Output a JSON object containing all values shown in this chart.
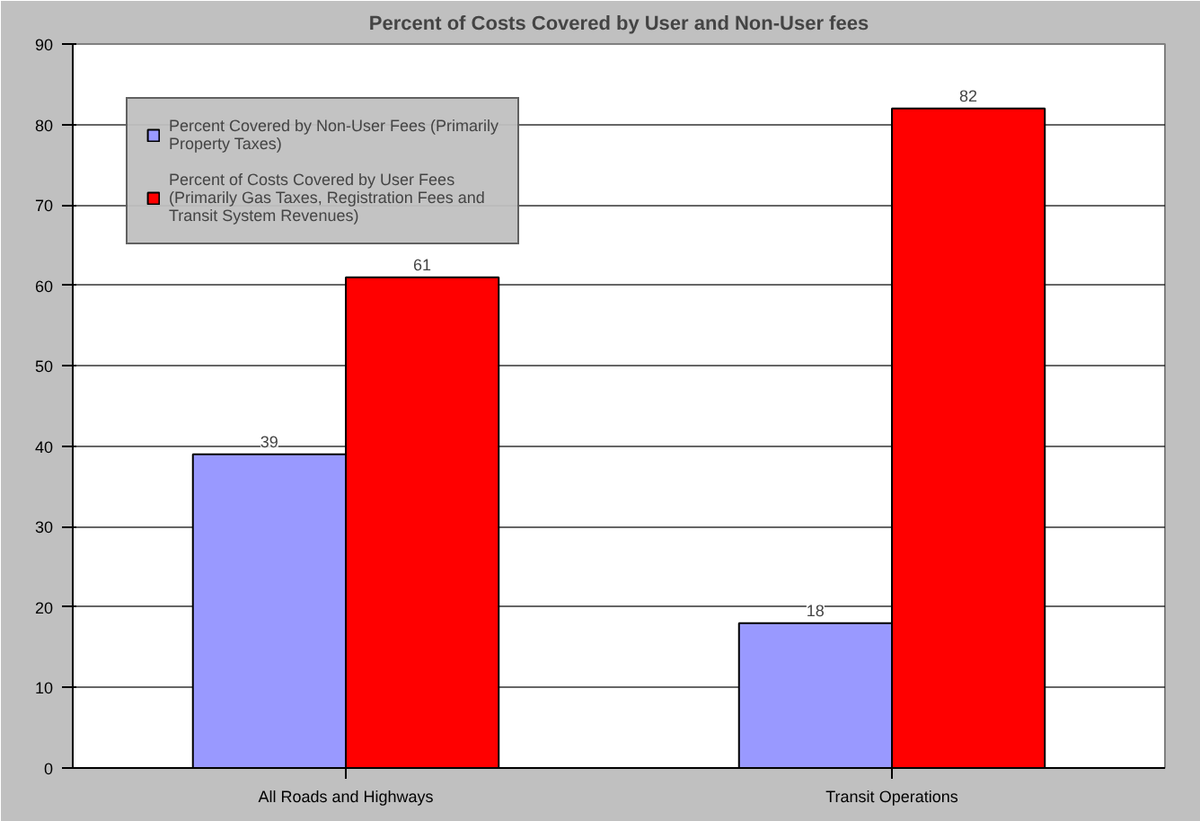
{
  "chart_data": {
    "type": "bar",
    "title": "Percent of Costs Covered by User and Non-User fees",
    "categories": [
      "All Roads and Highways",
      "Transit Operations"
    ],
    "series": [
      {
        "name": "Percent Covered by Non-User Fees (Primarily Property Taxes)",
        "color": "#9999ff",
        "values": [
          39,
          18
        ]
      },
      {
        "name": "Percent of Costs Covered by User Fees (Primarily Gas Taxes, Registration Fees and Transit System Revenues)",
        "color": "#ff0000",
        "values": [
          61,
          82
        ]
      }
    ],
    "ylim": [
      0,
      90
    ],
    "yticks": [
      0,
      10,
      20,
      30,
      40,
      50,
      60,
      70,
      80,
      90
    ],
    "grid": "y",
    "legend": "top left",
    "data_labels": true
  }
}
